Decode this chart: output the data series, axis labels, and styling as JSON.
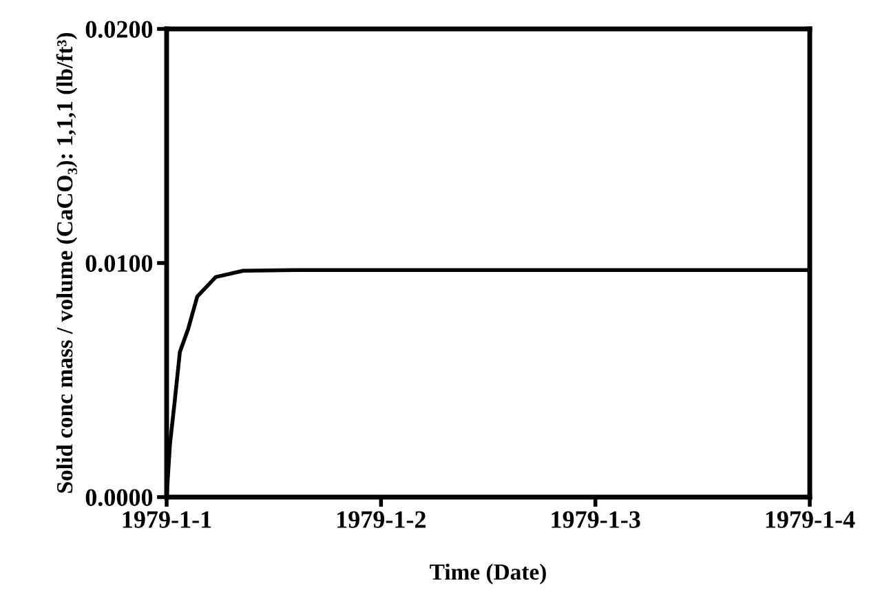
{
  "chart_data": {
    "type": "line",
    "xlabel": "Time (Date)",
    "ylabel": "Solid conc mass / volume (CaCO₃): 1,1,1 (lb/ft³)",
    "x": [
      "1979-01-01T00:00",
      "1979-01-01T00:22",
      "1979-01-01T00:53",
      "1979-01-01T01:29",
      "1979-01-01T02:25",
      "1979-01-01T03:26",
      "1979-01-01T05:30",
      "1979-01-01T08:34",
      "1979-01-01T14:24",
      "1979-01-02T00:00",
      "1979-01-03T00:00",
      "1979-01-04T00:00"
    ],
    "series": [
      {
        "color": "#000000",
        "values": [
          0,
          0.00224,
          0.00402,
          0.0062,
          0.00719,
          0.00857,
          0.0094,
          0.00967,
          0.0097,
          0.0097,
          0.0097,
          0.0097
        ]
      }
    ],
    "xlim": [
      "1979-01-01",
      "1979-01-04"
    ],
    "xticks": [
      {
        "value": "1979-01-01",
        "label": "1979-1-1"
      },
      {
        "value": "1979-01-02",
        "label": "1979-1-2"
      },
      {
        "value": "1979-01-03",
        "label": "1979-1-3"
      },
      {
        "value": "1979-01-04",
        "label": "1979-1-4"
      }
    ],
    "ylim": [
      0,
      0.02
    ],
    "yticks": [
      {
        "value": 0,
        "label": "0.0000"
      },
      {
        "value": 0.01,
        "label": "0.0100"
      },
      {
        "value": 0.02,
        "label": "0.0200"
      }
    ],
    "grid": false,
    "legend": false,
    "marker": "none",
    "line_style": "solid"
  }
}
